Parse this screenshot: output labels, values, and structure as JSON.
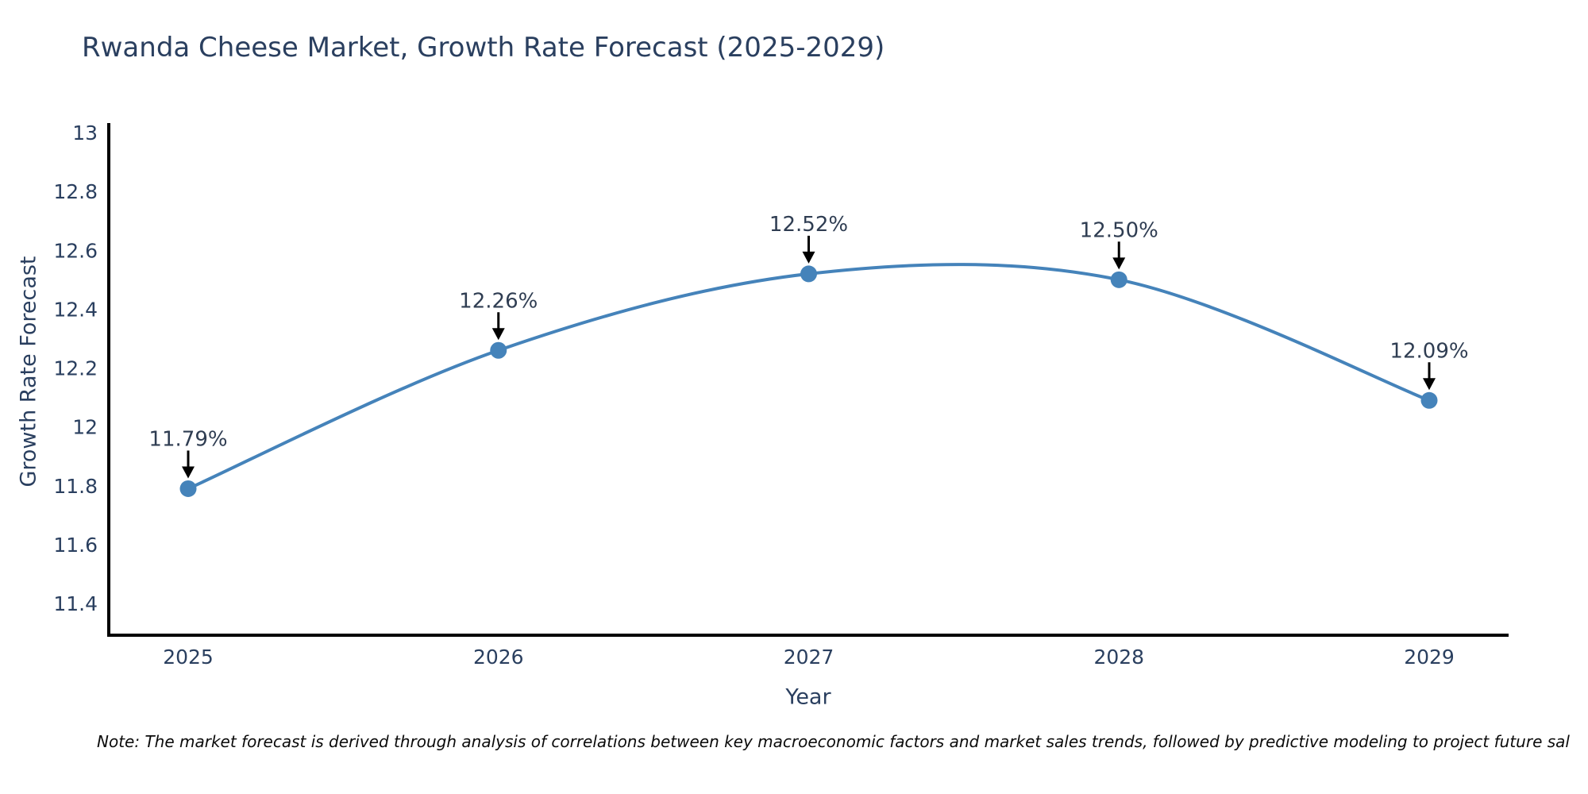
{
  "page": {
    "background": "#ffffff"
  },
  "note": "Note: The market forecast is derived through analysis of correlations between key macroeconomic factors and market sales trends, followed by predictive modeling to project future sal",
  "chart_data": {
    "type": "line",
    "title": "Rwanda Cheese Market, Growth Rate Forecast (2025-2029)",
    "xlabel": "Year",
    "ylabel": "Growth Rate Forecast",
    "x_tick_labels": [
      "2025",
      "2026",
      "2027",
      "2028",
      "2029"
    ],
    "x": [
      2025,
      2026,
      2027,
      2028,
      2029
    ],
    "y": [
      11.79,
      12.26,
      12.52,
      12.5,
      12.09
    ],
    "point_labels": [
      "11.79%",
      "12.26%",
      "12.52%",
      "12.50%",
      "12.09%"
    ],
    "y_tick_values": [
      13,
      12.8,
      12.6,
      12.4,
      12.2,
      12,
      11.8,
      11.6,
      11.4
    ],
    "y_tick_labels": [
      "13",
      "12.8",
      "12.6",
      "12.4",
      "12.2",
      "12",
      "11.8",
      "11.6",
      "11.4"
    ],
    "ylim": [
      11.4,
      13
    ],
    "line_shape": "spline",
    "grid": false,
    "legend": false,
    "markers": true,
    "colors": {
      "line": "#4583ba",
      "marker": "#4583ba",
      "axis": "#000000",
      "arrow": "#000000",
      "tick_text": "#2a3f5f",
      "annotation_text": "#2f3d52",
      "title_text": "#2a3f5f"
    }
  }
}
